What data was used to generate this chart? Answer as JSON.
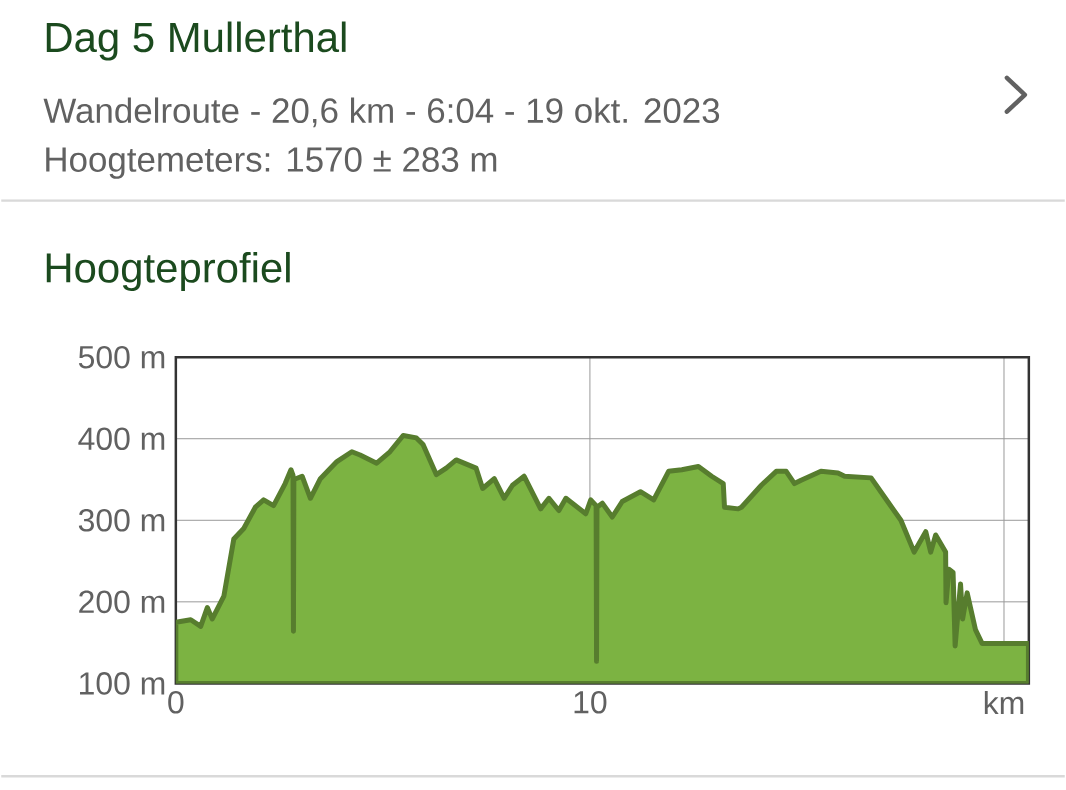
{
  "chart_data": {
    "type": "area",
    "title": "Dag 5 Mullerthal",
    "subtitle": "Wandelroute - 20,6 km - 6:04 - 19 okt. 2023",
    "annotations": [
      "Hoogtemeters: 1570 ± 283 m",
      "Hoogteprofiel"
    ],
    "series": [
      {
        "color": "#7cb342",
        "x": [
          0,
          0.36,
          0.6,
          0.76,
          0.88,
          1.16,
          1.4,
          1.64,
          1.92,
          2.12,
          2.36,
          2.64,
          2.78,
          2.83,
          2.84,
          2.85,
          3.05,
          3.25,
          3.49,
          3.89,
          4.25,
          4.45,
          4.85,
          5.17,
          5.49,
          5.81,
          5.97,
          6.29,
          6.53,
          6.77,
          7.25,
          7.41,
          7.69,
          7.93,
          8.13,
          8.41,
          8.81,
          9.01,
          9.25,
          9.42,
          9.9,
          10.02,
          10.15,
          10.16,
          10.17,
          10.3,
          10.54,
          10.78,
          11.22,
          11.54,
          11.9,
          12.22,
          12.62,
          12.94,
          13.22,
          13.25,
          13.58,
          13.66,
          14.14,
          14.5,
          14.74,
          14.94,
          15.1,
          15.58,
          15.99,
          16.15,
          16.79,
          17.19,
          17.51,
          17.83,
          18.11,
          18.23,
          18.35,
          18.59,
          18.6,
          18.67,
          18.77,
          18.82,
          18.95,
          19.0,
          19.11,
          19.31,
          19.47,
          20.59
        ],
        "values": [
          175,
          178,
          170,
          193,
          179,
          207,
          277,
          290,
          316,
          325,
          318,
          345,
          362,
          355,
          164,
          350,
          354,
          327,
          351,
          372,
          384,
          380,
          370,
          384,
          404,
          401,
          393,
          356,
          364,
          374,
          364,
          339,
          351,
          327,
          343,
          354,
          314,
          327,
          312,
          327,
          308,
          325,
          318,
          127,
          316,
          321,
          304,
          323,
          335,
          325,
          360,
          362,
          366,
          354,
          345,
          316,
          314,
          316,
          343,
          360,
          360,
          345,
          349,
          360,
          358,
          354,
          352,
          323,
          300,
          261,
          286,
          261,
          282,
          261,
          199,
          240,
          236,
          146,
          222,
          179,
          211,
          166,
          149,
          149
        ]
      }
    ],
    "xlim": [
      0,
      20.6
    ],
    "ylim": [
      100,
      500
    ],
    "xticks": [
      0,
      10,
      {
        "value": 20,
        "label": "km"
      }
    ],
    "yticks": [
      {
        "value": 100,
        "label": "100 m"
      },
      {
        "value": 200,
        "label": "200 m"
      },
      {
        "value": 300,
        "label": "300 m"
      },
      {
        "value": 400,
        "label": "400 m"
      },
      {
        "value": 500,
        "label": "500 m"
      }
    ],
    "grid": true
  }
}
